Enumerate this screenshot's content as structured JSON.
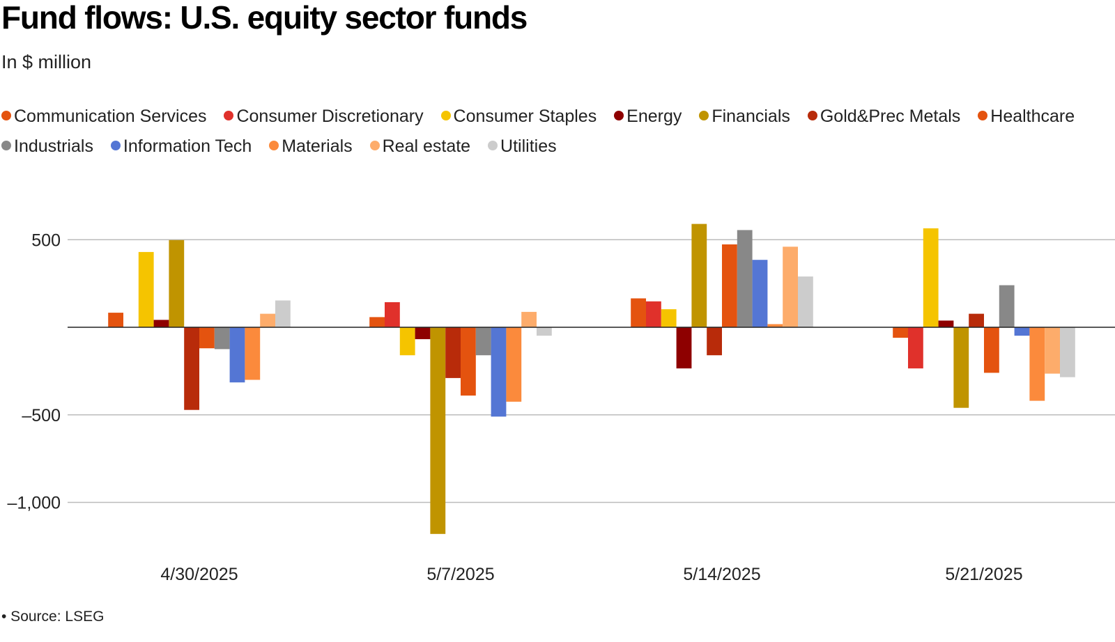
{
  "chart_data": {
    "type": "bar",
    "title": "Fund flows: U.S. equity sector funds",
    "subtitle": "In $ million",
    "xlabel": "",
    "ylabel": "",
    "ylim": [
      -1200,
      600
    ],
    "yticks": [
      500,
      -500,
      -1000
    ],
    "ytick_labels": [
      "500",
      "–500",
      "–1,000"
    ],
    "grid": true,
    "legend_position": "top",
    "categories": [
      "4/30/2025",
      "5/7/2025",
      "5/14/2025",
      "5/21/2025"
    ],
    "series": [
      {
        "name": "Communication Services",
        "color": "#e4530f",
        "values": [
          83,
          58,
          165,
          -60
        ]
      },
      {
        "name": "Consumer Discretionary",
        "color": "#e0312b",
        "values": [
          null,
          143,
          148,
          -235
        ]
      },
      {
        "name": "Consumer Staples",
        "color": "#f5c400",
        "values": [
          430,
          -160,
          103,
          565
        ]
      },
      {
        "name": "Energy",
        "color": "#8e0000",
        "values": [
          42,
          -68,
          -235,
          38
        ]
      },
      {
        "name": "Financials",
        "color": "#c09400",
        "values": [
          498,
          -1180,
          590,
          -460
        ]
      },
      {
        "name": "Gold&Prec Metals",
        "color": "#b82b0a",
        "values": [
          -472,
          -290,
          -160,
          77
        ]
      },
      {
        "name": "Healthcare",
        "color": "#e4530f",
        "values": [
          -120,
          -390,
          473,
          -260
        ]
      },
      {
        "name": "Industrials",
        "color": "#888888",
        "values": [
          -125,
          -160,
          555,
          240
        ]
      },
      {
        "name": "Information Tech",
        "color": "#5476d4",
        "values": [
          -315,
          -510,
          385,
          -48
        ]
      },
      {
        "name": "Materials",
        "color": "#fb8a3c",
        "values": [
          -300,
          -425,
          18,
          -420
        ]
      },
      {
        "name": "Real estate",
        "color": "#fdac6b",
        "values": [
          77,
          88,
          460,
          -265
        ]
      },
      {
        "name": "Utilities",
        "color": "#cccccc",
        "values": [
          153,
          -48,
          290,
          -285
        ]
      }
    ],
    "source": "• Source: LSEG"
  }
}
